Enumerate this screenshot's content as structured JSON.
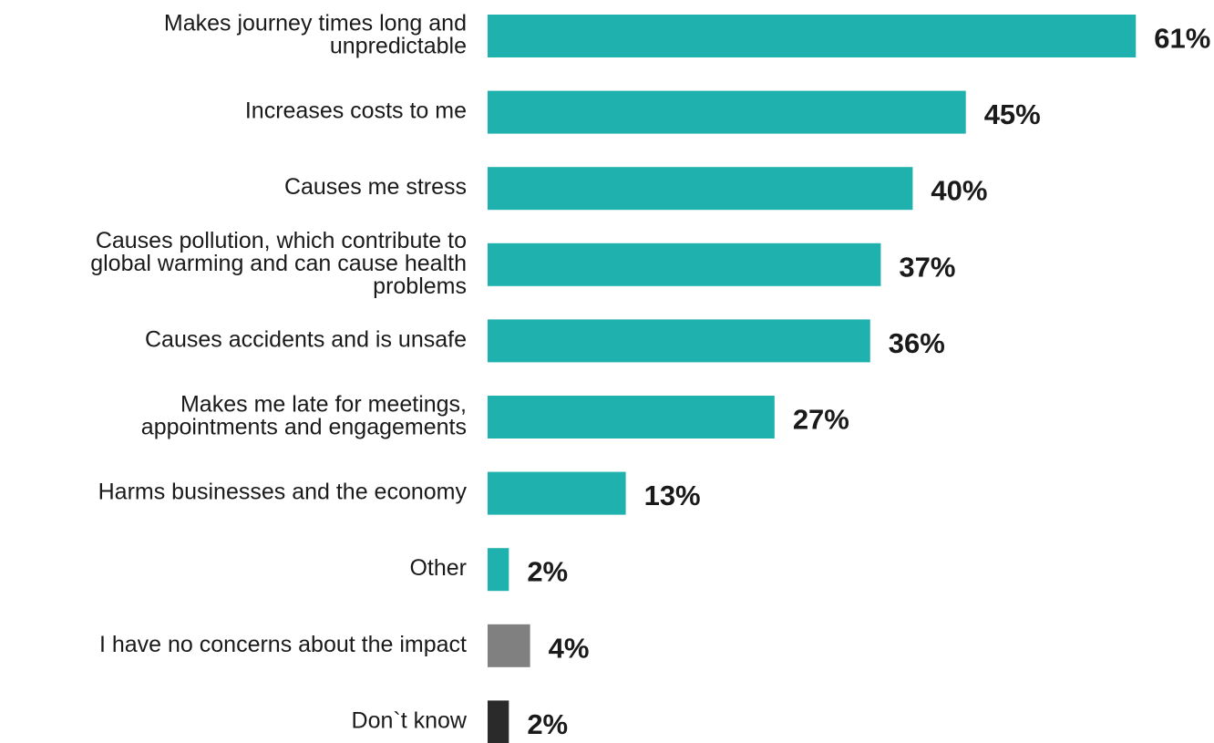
{
  "chart_data": {
    "type": "bar",
    "orientation": "horizontal",
    "categories": [
      "Makes journey times long and unpredictable",
      "Increases costs to me",
      "Causes me stress",
      "Causes pollution, which contribute to global warming and can cause health problems",
      "Causes accidents and is unsafe",
      "Makes me late for meetings, appointments and engagements",
      "Harms businesses and the economy",
      "Other",
      "I have no concerns about the impact",
      "Don`t know"
    ],
    "category_lines": [
      [
        "Makes journey times long and",
        "unpredictable"
      ],
      [
        "Increases costs to me"
      ],
      [
        "Causes me stress"
      ],
      [
        "Causes pollution, which contribute to",
        "global warming and can cause health",
        "problems"
      ],
      [
        "Causes accidents and is unsafe"
      ],
      [
        "Makes me late for meetings,",
        "appointments and engagements"
      ],
      [
        "Harms businesses and the economy"
      ],
      [
        "Other"
      ],
      [
        "I have no concerns about the impact"
      ],
      [
        "Don`t know"
      ]
    ],
    "values": [
      61,
      45,
      40,
      37,
      36,
      27,
      13,
      2,
      4,
      2
    ],
    "value_labels": [
      "61%",
      "45%",
      "40%",
      "37%",
      "36%",
      "27%",
      "13%",
      "2%",
      "4%",
      "2%"
    ],
    "bar_colors": [
      "#1fb1ae",
      "#1fb1ae",
      "#1fb1ae",
      "#1fb1ae",
      "#1fb1ae",
      "#1fb1ae",
      "#1fb1ae",
      "#1fb1ae",
      "#808080",
      "#2a2a2a"
    ],
    "title": "",
    "xlabel": "",
    "ylabel": "",
    "xlim": [
      0,
      61
    ],
    "grid": false,
    "legend": "none"
  }
}
